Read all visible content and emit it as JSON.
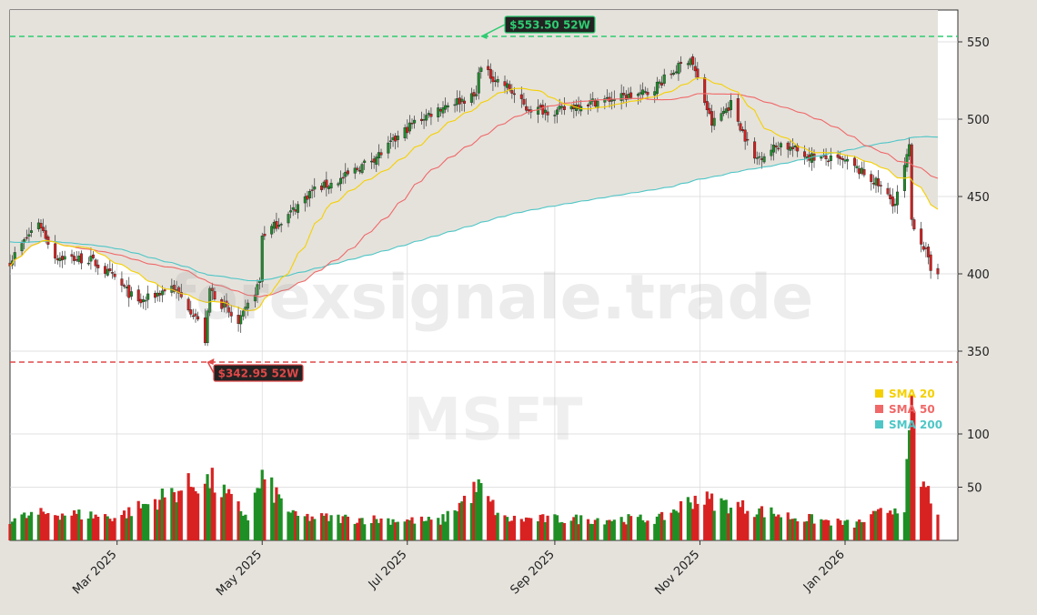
{
  "chart_data": {
    "type": "candlestick",
    "symbol": "MSFT",
    "watermark": "forexsignale.trade",
    "price_axis": {
      "ylim": [
        325,
        570
      ],
      "ticks": [
        350,
        400,
        450,
        500,
        550
      ]
    },
    "volume_axis": {
      "ticks": [
        50,
        100
      ]
    },
    "x_axis": {
      "start": "2025-01-15",
      "end": "2026-02-09",
      "tick_labels": [
        "Mar 2025",
        "May 2025",
        "Jul 2025",
        "Sep 2025",
        "Nov 2025",
        "Jan 2026"
      ],
      "tick_dates": [
        "2025-03-01",
        "2025-05-01",
        "2025-07-01",
        "2025-09-01",
        "2025-11-01",
        "2026-01-01"
      ]
    },
    "high_52w": {
      "label": "$553.50 52W",
      "value": 553.5,
      "date": "2025-07-31",
      "color": "#2ecc71"
    },
    "low_52w": {
      "label": "$342.95 52W",
      "value": 342.95,
      "date": "2025-04-07",
      "color": "#e04848"
    },
    "close_anchors": [
      [
        "2025-01-15",
        408
      ],
      [
        "2025-01-27",
        434
      ],
      [
        "2025-02-03",
        411
      ],
      [
        "2025-02-18",
        409
      ],
      [
        "2025-02-28",
        397
      ],
      [
        "2025-03-10",
        381
      ],
      [
        "2025-03-24",
        392
      ],
      [
        "2025-04-03",
        373
      ],
      [
        "2025-04-07",
        357
      ],
      [
        "2025-04-09",
        390
      ],
      [
        "2025-04-21",
        367
      ],
      [
        "2025-04-30",
        395
      ],
      [
        "2025-05-01",
        425
      ],
      [
        "2025-05-12",
        438
      ],
      [
        "2025-05-22",
        454
      ],
      [
        "2025-06-02",
        460
      ],
      [
        "2025-06-20",
        478
      ],
      [
        "2025-07-03",
        497
      ],
      [
        "2025-07-18",
        510
      ],
      [
        "2025-07-30",
        515
      ],
      [
        "2025-07-31",
        533
      ],
      [
        "2025-08-12",
        521
      ],
      [
        "2025-08-20",
        507
      ],
      [
        "2025-09-02",
        505
      ],
      [
        "2025-09-12",
        510
      ],
      [
        "2025-09-25",
        513
      ],
      [
        "2025-10-10",
        517
      ],
      [
        "2025-10-28",
        540
      ],
      [
        "2025-11-06",
        497
      ],
      [
        "2025-11-14",
        510
      ],
      [
        "2025-11-24",
        474
      ],
      [
        "2025-12-05",
        484
      ],
      [
        "2025-12-17",
        476
      ],
      [
        "2026-01-02",
        472
      ],
      [
        "2026-01-14",
        459
      ],
      [
        "2026-01-22",
        445
      ],
      [
        "2026-01-28",
        481
      ],
      [
        "2026-01-29",
        435
      ],
      [
        "2026-02-04",
        414
      ],
      [
        "2026-02-06",
        402
      ]
    ],
    "volume_anchors": [
      [
        "2025-01-15",
        20
      ],
      [
        "2025-02-01",
        26
      ],
      [
        "2025-03-01",
        22
      ],
      [
        "2025-04-04",
        55
      ],
      [
        "2025-04-10",
        55
      ],
      [
        "2025-04-25",
        22
      ],
      [
        "2025-05-01",
        58
      ],
      [
        "2025-05-15",
        22
      ],
      [
        "2025-07-15",
        18
      ],
      [
        "2025-07-31",
        50
      ],
      [
        "2025-08-10",
        20
      ],
      [
        "2025-10-15",
        20
      ],
      [
        "2025-10-30",
        40
      ],
      [
        "2025-12-10",
        22
      ],
      [
        "2026-01-05",
        15
      ],
      [
        "2026-01-26",
        35
      ],
      [
        "2026-01-29",
        115
      ],
      [
        "2026-02-02",
        55
      ],
      [
        "2026-02-09",
        30
      ]
    ],
    "series": [
      {
        "name": "SMA 20",
        "color": "#f5d000"
      },
      {
        "name": "SMA 50",
        "color": "#f06868"
      },
      {
        "name": "SMA 200",
        "color": "#4ec6c6"
      }
    ],
    "colors": {
      "up": "#1e8c2b",
      "down": "#d42020",
      "vol_up": "#1f8f25",
      "vol_down": "#d82222"
    }
  }
}
